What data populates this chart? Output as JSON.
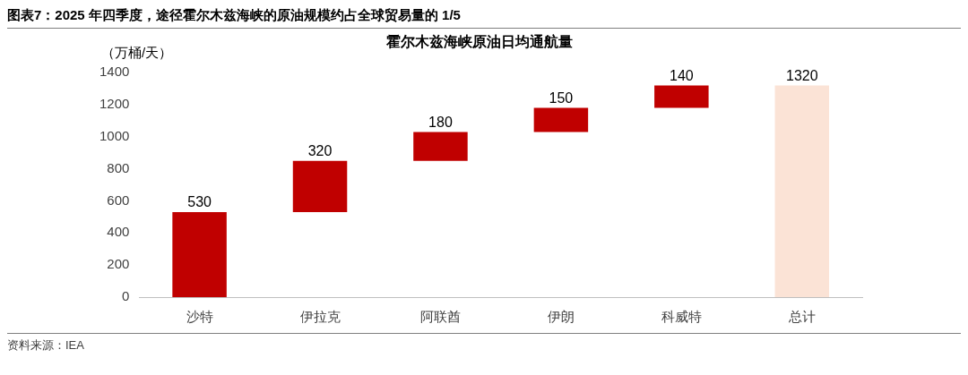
{
  "chart_data": {
    "type": "bar",
    "title": "图表7：2025 年四季度，途径霍尔木兹海峡的原油规模约占全球贸易量的 1/5",
    "subtitle": "霍尔木兹海峡原油日均通航量",
    "ylabel": "（万桶/天）",
    "categories": [
      "沙特",
      "伊拉克",
      "阿联酋",
      "伊朗",
      "科威特",
      "总计"
    ],
    "values": [
      530,
      320,
      180,
      150,
      140,
      1320
    ],
    "base": [
      0,
      530,
      850,
      1030,
      1180,
      0
    ],
    "colors": [
      "#c00000",
      "#c00000",
      "#c00000",
      "#c00000",
      "#c00000",
      "#fbe3d6"
    ],
    "ylim": [
      0,
      1400
    ],
    "yticks": [
      0,
      200,
      400,
      600,
      800,
      1000,
      1200,
      1400
    ],
    "grid": false,
    "legend": false,
    "data_labels": true,
    "annotations": [
      "资料来源：IEA"
    ]
  }
}
